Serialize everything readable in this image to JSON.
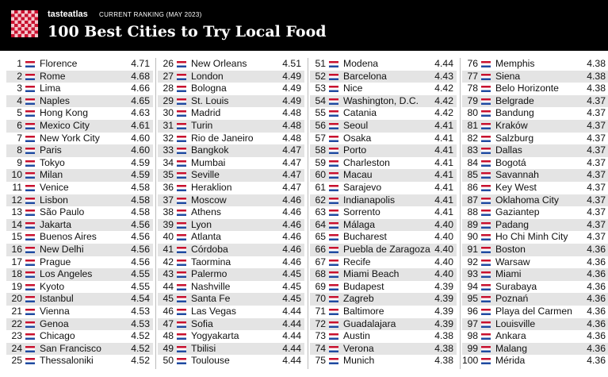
{
  "header": {
    "brand": "tasteatlas",
    "subtitle": "CURRENT RANKING (MAY 2023)",
    "title": "100 Best Cities to Try Local Food"
  },
  "table": {
    "rows": [
      [
        1,
        "Florence",
        "4.71"
      ],
      [
        2,
        "Rome",
        "4.68"
      ],
      [
        3,
        "Lima",
        "4.66"
      ],
      [
        4,
        "Naples",
        "4.65"
      ],
      [
        5,
        "Hong Kong",
        "4.63"
      ],
      [
        6,
        "Mexico City",
        "4.61"
      ],
      [
        7,
        "New York City",
        "4.60"
      ],
      [
        8,
        "Paris",
        "4.60"
      ],
      [
        9,
        "Tokyo",
        "4.59"
      ],
      [
        10,
        "Milan",
        "4.59"
      ],
      [
        11,
        "Venice",
        "4.58"
      ],
      [
        12,
        "Lisbon",
        "4.58"
      ],
      [
        13,
        "São Paulo",
        "4.58"
      ],
      [
        14,
        "Jakarta",
        "4.56"
      ],
      [
        15,
        "Buenos Aires",
        "4.56"
      ],
      [
        16,
        "New Delhi",
        "4.56"
      ],
      [
        17,
        "Prague",
        "4.56"
      ],
      [
        18,
        "Los Angeles",
        "4.55"
      ],
      [
        19,
        "Kyoto",
        "4.55"
      ],
      [
        20,
        "Istanbul",
        "4.54"
      ],
      [
        21,
        "Vienna",
        "4.53"
      ],
      [
        22,
        "Genoa",
        "4.53"
      ],
      [
        23,
        "Chicago",
        "4.52"
      ],
      [
        24,
        "San Francisco",
        "4.52"
      ],
      [
        25,
        "Thessaloniki",
        "4.52"
      ],
      [
        26,
        "New Orleans",
        "4.51"
      ],
      [
        27,
        "London",
        "4.49"
      ],
      [
        28,
        "Bologna",
        "4.49"
      ],
      [
        29,
        "St. Louis",
        "4.49"
      ],
      [
        30,
        "Madrid",
        "4.48"
      ],
      [
        31,
        "Turin",
        "4.48"
      ],
      [
        32,
        "Rio de Janeiro",
        "4.48"
      ],
      [
        33,
        "Bangkok",
        "4.47"
      ],
      [
        34,
        "Mumbai",
        "4.47"
      ],
      [
        35,
        "Seville",
        "4.47"
      ],
      [
        36,
        "Heraklion",
        "4.47"
      ],
      [
        37,
        "Moscow",
        "4.46"
      ],
      [
        38,
        "Athens",
        "4.46"
      ],
      [
        39,
        "Lyon",
        "4.46"
      ],
      [
        40,
        "Atlanta",
        "4.46"
      ],
      [
        41,
        "Córdoba",
        "4.46"
      ],
      [
        42,
        "Taormina",
        "4.46"
      ],
      [
        43,
        "Palermo",
        "4.45"
      ],
      [
        44,
        "Nashville",
        "4.45"
      ],
      [
        45,
        "Santa Fe",
        "4.45"
      ],
      [
        46,
        "Las Vegas",
        "4.44"
      ],
      [
        47,
        "Sofia",
        "4.44"
      ],
      [
        48,
        "Yogyakarta",
        "4.44"
      ],
      [
        49,
        "Tbilisi",
        "4.44"
      ],
      [
        50,
        "Toulouse",
        "4.44"
      ],
      [
        51,
        "Modena",
        "4.44"
      ],
      [
        52,
        "Barcelona",
        "4.43"
      ],
      [
        53,
        "Nice",
        "4.42"
      ],
      [
        54,
        "Washington, D.C.",
        "4.42"
      ],
      [
        55,
        "Catania",
        "4.42"
      ],
      [
        56,
        "Seoul",
        "4.41"
      ],
      [
        57,
        "Osaka",
        "4.41"
      ],
      [
        58,
        "Porto",
        "4.41"
      ],
      [
        59,
        "Charleston",
        "4.41"
      ],
      [
        60,
        "Macau",
        "4.41"
      ],
      [
        61,
        "Sarajevo",
        "4.41"
      ],
      [
        62,
        "Indianapolis",
        "4.41"
      ],
      [
        63,
        "Sorrento",
        "4.41"
      ],
      [
        64,
        "Málaga",
        "4.40"
      ],
      [
        65,
        "Bucharest",
        "4.40"
      ],
      [
        66,
        "Puebla de Zaragoza",
        "4.40"
      ],
      [
        67,
        "Recife",
        "4.40"
      ],
      [
        68,
        "Miami Beach",
        "4.40"
      ],
      [
        69,
        "Budapest",
        "4.39"
      ],
      [
        70,
        "Zagreb",
        "4.39"
      ],
      [
        71,
        "Baltimore",
        "4.39"
      ],
      [
        72,
        "Guadalajara",
        "4.39"
      ],
      [
        73,
        "Austin",
        "4.38"
      ],
      [
        74,
        "Verona",
        "4.38"
      ],
      [
        75,
        "Munich",
        "4.38"
      ],
      [
        76,
        "Memphis",
        "4.38"
      ],
      [
        77,
        "Siena",
        "4.38"
      ],
      [
        78,
        "Belo Horizonte",
        "4.38"
      ],
      [
        79,
        "Belgrade",
        "4.37"
      ],
      [
        80,
        "Bandung",
        "4.37"
      ],
      [
        81,
        "Kraków",
        "4.37"
      ],
      [
        82,
        "Salzburg",
        "4.37"
      ],
      [
        83,
        "Dallas",
        "4.37"
      ],
      [
        84,
        "Bogotá",
        "4.37"
      ],
      [
        85,
        "Savannah",
        "4.37"
      ],
      [
        86,
        "Key West",
        "4.37"
      ],
      [
        87,
        "Oklahoma City",
        "4.37"
      ],
      [
        88,
        "Gaziantep",
        "4.37"
      ],
      [
        89,
        "Padang",
        "4.37"
      ],
      [
        90,
        "Ho Chi Minh City",
        "4.37"
      ],
      [
        91,
        "Boston",
        "4.36"
      ],
      [
        92,
        "Warsaw",
        "4.36"
      ],
      [
        93,
        "Miami",
        "4.36"
      ],
      [
        94,
        "Surabaya",
        "4.36"
      ],
      [
        95,
        "Poznań",
        "4.36"
      ],
      [
        96,
        "Playa del Carmen",
        "4.36"
      ],
      [
        97,
        "Louisville",
        "4.36"
      ],
      [
        98,
        "Ankara",
        "4.36"
      ],
      [
        99,
        "Malang",
        "4.36"
      ],
      [
        100,
        "Mérida",
        "4.36"
      ]
    ]
  }
}
